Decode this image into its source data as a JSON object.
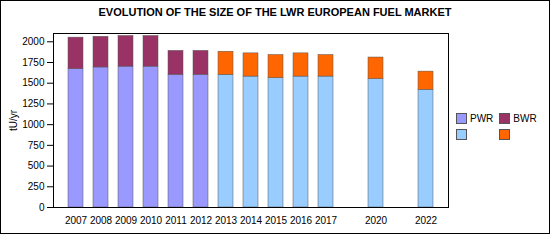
{
  "chart_data": {
    "type": "bar",
    "title": "EVOLUTION OF THE SIZE OF THE LWR EUROPEAN FUEL MARKET",
    "y_label": "tU/yr",
    "categories": [
      "2007",
      "2008",
      "2009",
      "2010",
      "2011",
      "2012",
      "2013",
      "2014",
      "2015",
      "2016",
      "2017",
      null,
      "2020",
      null,
      "2022"
    ],
    "series": [
      {
        "name": "PWR",
        "values": [
          1670,
          1690,
          1700,
          1700,
          1600,
          1600,
          1600,
          1580,
          1560,
          1580,
          1580,
          null,
          1550,
          null,
          1420
        ],
        "colors": [
          "#9999ff",
          "#9999ff",
          "#9999ff",
          "#9999ff",
          "#9999ff",
          "#9999ff",
          "#99ccff",
          "#99ccff",
          "#99ccff",
          "#99ccff",
          "#99ccff",
          null,
          "#99ccff",
          null,
          "#99ccff"
        ]
      },
      {
        "name": "BWR",
        "values": [
          380,
          370,
          370,
          370,
          290,
          290,
          280,
          280,
          280,
          280,
          260,
          null,
          260,
          null,
          220
        ],
        "colors": [
          "#993366",
          "#993366",
          "#993366",
          "#993366",
          "#993366",
          "#993366",
          "#ff6600",
          "#ff6600",
          "#ff6600",
          "#ff6600",
          "#ff6600",
          null,
          "#ff6600",
          null,
          "#ff6600"
        ]
      }
    ],
    "stacked": true,
    "ylim": [
      0,
      2100
    ],
    "yticks": [
      0,
      250,
      500,
      750,
      1000,
      1250,
      1500,
      1750,
      2000
    ],
    "grid": false,
    "legend": "right"
  }
}
